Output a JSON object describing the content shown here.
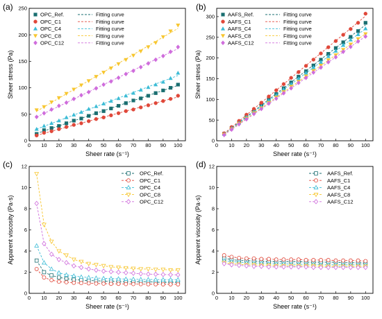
{
  "chart_data": [
    {
      "panel": "(a)",
      "type": "scatter",
      "xlabel": "Sheer rate (s⁻¹)",
      "ylabel": "Sheer stress (Pa)",
      "xlim": [
        0,
        105
      ],
      "ylim": [
        0,
        250
      ],
      "xticks": [
        0,
        10,
        20,
        30,
        40,
        50,
        60,
        70,
        80,
        90,
        100
      ],
      "yticks": [
        0,
        50,
        100,
        150,
        200,
        250
      ],
      "legend_position": "top-left",
      "marker_fill": "filled",
      "fit_label": "Fitting curve",
      "x": [
        5,
        10,
        15,
        20,
        25,
        30,
        35,
        40,
        45,
        50,
        55,
        60,
        65,
        70,
        75,
        80,
        85,
        90,
        95,
        100
      ],
      "series": [
        {
          "name": "OPC_Ref.",
          "color": "#1a6e70",
          "marker": "square",
          "values": [
            13,
            20,
            24,
            28,
            33,
            38,
            42,
            47,
            52,
            56,
            61,
            66,
            71,
            76,
            80,
            85,
            90,
            95,
            100,
            106
          ]
        },
        {
          "name": "OPC_C1",
          "color": "#e0483a",
          "marker": "circle",
          "values": [
            10,
            15,
            18,
            22,
            26,
            30,
            33,
            37,
            41,
            44,
            48,
            52,
            56,
            59,
            63,
            67,
            71,
            75,
            79,
            85
          ]
        },
        {
          "name": "OPC_C4",
          "color": "#3cbcd6",
          "marker": "triangle-up",
          "values": [
            22,
            28,
            33,
            38,
            44,
            49,
            54,
            60,
            65,
            70,
            75,
            80,
            85,
            90,
            96,
            101,
            106,
            111,
            118,
            128
          ]
        },
        {
          "name": "OPC_C8",
          "color": "#f7c62f",
          "marker": "triangle-down",
          "values": [
            58,
            64,
            73,
            81,
            89,
            97,
            105,
            113,
            121,
            129,
            137,
            145,
            153,
            161,
            169,
            177,
            185,
            196,
            207,
            218
          ]
        },
        {
          "name": "OPC_C12",
          "color": "#cf6cdc",
          "marker": "diamond",
          "values": [
            45,
            52,
            59,
            66,
            72,
            79,
            86,
            92,
            99,
            106,
            112,
            119,
            126,
            132,
            139,
            146,
            153,
            160,
            168,
            177
          ]
        }
      ]
    },
    {
      "panel": "(b)",
      "type": "scatter",
      "xlabel": "Sheer rate (s⁻¹)",
      "ylabel": "Sheer stress (Pa)",
      "xlim": [
        0,
        105
      ],
      "ylim": [
        0,
        320
      ],
      "xticks": [
        0,
        10,
        20,
        30,
        40,
        50,
        60,
        70,
        80,
        90,
        100
      ],
      "yticks": [
        0,
        50,
        100,
        150,
        200,
        250,
        300
      ],
      "legend_position": "top-left",
      "marker_fill": "filled",
      "fit_label": "Fitting curve",
      "x": [
        5,
        10,
        15,
        20,
        25,
        30,
        35,
        40,
        45,
        50,
        55,
        60,
        65,
        70,
        75,
        80,
        85,
        90,
        95,
        100
      ],
      "series": [
        {
          "name": "AAFS_Ref.",
          "color": "#1a6e70",
          "marker": "square",
          "values": [
            17,
            31,
            45,
            59,
            72,
            86,
            100,
            113,
            127,
            141,
            155,
            168,
            182,
            196,
            210,
            224,
            238,
            251,
            265,
            285
          ]
        },
        {
          "name": "AAFS_C1",
          "color": "#e0483a",
          "marker": "circle",
          "values": [
            18,
            33,
            48,
            63,
            77,
            92,
            107,
            122,
            137,
            152,
            166,
            181,
            196,
            211,
            226,
            241,
            256,
            270,
            285,
            307
          ]
        },
        {
          "name": "AAFS_C4",
          "color": "#3cbcd6",
          "marker": "triangle-up",
          "values": [
            16,
            30,
            43,
            57,
            70,
            83,
            97,
            110,
            124,
            137,
            150,
            164,
            177,
            190,
            204,
            217,
            231,
            244,
            257,
            271
          ]
        },
        {
          "name": "AAFS_C8",
          "color": "#f7c62f",
          "marker": "triangle-down",
          "values": [
            15,
            28,
            41,
            54,
            67,
            79,
            92,
            105,
            118,
            131,
            143,
            156,
            169,
            182,
            195,
            207,
            220,
            233,
            246,
            258
          ]
        },
        {
          "name": "AAFS_C12",
          "color": "#cf6cdc",
          "marker": "diamond",
          "values": [
            14,
            27,
            40,
            52,
            65,
            77,
            90,
            102,
            115,
            127,
            140,
            152,
            165,
            177,
            190,
            202,
            215,
            227,
            240,
            252
          ]
        }
      ]
    },
    {
      "panel": "(c)",
      "type": "line",
      "xlabel": "Sheer rate (s⁻¹)",
      "ylabel": "Apparent viscosity (Pa·s)",
      "xlim": [
        0,
        105
      ],
      "ylim": [
        0,
        12
      ],
      "xticks": [
        0,
        10,
        20,
        30,
        40,
        50,
        60,
        70,
        80,
        90,
        100
      ],
      "yticks": [
        0,
        2,
        4,
        6,
        8,
        10,
        12
      ],
      "legend_position": "top-right",
      "marker_fill": "hollow",
      "line_style": "dashed",
      "x": [
        5,
        10,
        15,
        20,
        25,
        30,
        35,
        40,
        45,
        50,
        55,
        60,
        65,
        70,
        75,
        80,
        85,
        90,
        95,
        100
      ],
      "series": [
        {
          "name": "OPC_Ref.",
          "color": "#1a6e70",
          "marker": "square",
          "values": [
            3.1,
            2.0,
            1.7,
            1.5,
            1.4,
            1.3,
            1.25,
            1.2,
            1.2,
            1.15,
            1.15,
            1.1,
            1.1,
            1.1,
            1.1,
            1.1,
            1.05,
            1.05,
            1.05,
            1.05
          ]
        },
        {
          "name": "OPC_C1",
          "color": "#e0483a",
          "marker": "circle",
          "values": [
            2.3,
            1.5,
            1.25,
            1.1,
            1.05,
            1.0,
            0.97,
            0.95,
            0.93,
            0.92,
            0.9,
            0.9,
            0.88,
            0.88,
            0.87,
            0.86,
            0.86,
            0.85,
            0.85,
            0.85
          ]
        },
        {
          "name": "OPC_C4",
          "color": "#3cbcd6",
          "marker": "triangle-up",
          "values": [
            4.5,
            2.9,
            2.3,
            1.95,
            1.75,
            1.65,
            1.55,
            1.5,
            1.45,
            1.42,
            1.4,
            1.38,
            1.35,
            1.34,
            1.32,
            1.31,
            1.3,
            1.3,
            1.3,
            1.3
          ]
        },
        {
          "name": "OPC_C8",
          "color": "#f7c62f",
          "marker": "triangle-down",
          "values": [
            11.3,
            6.5,
            4.9,
            4.0,
            3.6,
            3.2,
            3.0,
            2.8,
            2.7,
            2.6,
            2.5,
            2.45,
            2.4,
            2.35,
            2.3,
            2.3,
            2.25,
            2.25,
            2.2,
            2.2
          ]
        },
        {
          "name": "OPC_C12",
          "color": "#cf6cdc",
          "marker": "diamond",
          "values": [
            8.5,
            4.7,
            3.7,
            3.2,
            2.9,
            2.6,
            2.45,
            2.3,
            2.2,
            2.1,
            2.05,
            2.0,
            1.95,
            1.9,
            1.85,
            1.82,
            1.8,
            1.78,
            1.76,
            1.75
          ]
        }
      ]
    },
    {
      "panel": "(d)",
      "type": "line",
      "xlabel": "Sheer rate (s⁻¹)",
      "ylabel": "Apparent viscosity (Pa·s)",
      "xlim": [
        0,
        105
      ],
      "ylim": [
        0,
        12
      ],
      "xticks": [
        0,
        10,
        20,
        30,
        40,
        50,
        60,
        70,
        80,
        90,
        100
      ],
      "yticks": [
        0,
        2,
        4,
        6,
        8,
        10,
        12
      ],
      "legend_position": "top-right",
      "marker_fill": "hollow",
      "line_style": "dashed",
      "x": [
        5,
        10,
        15,
        20,
        25,
        30,
        35,
        40,
        45,
        50,
        55,
        60,
        65,
        70,
        75,
        80,
        85,
        90,
        95,
        100
      ],
      "series": [
        {
          "name": "AAFS_Ref.",
          "color": "#1a6e70",
          "marker": "square",
          "values": [
            3.3,
            3.2,
            3.1,
            3.1,
            3.05,
            3.0,
            3.0,
            3.0,
            3.0,
            3.0,
            3.0,
            2.95,
            2.95,
            2.95,
            2.95,
            2.95,
            2.9,
            2.9,
            2.9,
            2.85
          ]
        },
        {
          "name": "AAFS_C1",
          "color": "#e0483a",
          "marker": "circle",
          "values": [
            3.6,
            3.45,
            3.35,
            3.3,
            3.3,
            3.25,
            3.25,
            3.2,
            3.2,
            3.2,
            3.2,
            3.15,
            3.15,
            3.15,
            3.15,
            3.1,
            3.1,
            3.1,
            3.1,
            3.05
          ]
        },
        {
          "name": "AAFS_C4",
          "color": "#3cbcd6",
          "marker": "triangle-up",
          "values": [
            3.1,
            3.0,
            2.95,
            2.9,
            2.85,
            2.85,
            2.8,
            2.8,
            2.8,
            2.75,
            2.75,
            2.75,
            2.75,
            2.7,
            2.7,
            2.7,
            2.7,
            2.7,
            2.7,
            2.7
          ]
        },
        {
          "name": "AAFS_C8",
          "color": "#f7c62f",
          "marker": "triangle-down",
          "values": [
            2.9,
            2.8,
            2.75,
            2.7,
            2.7,
            2.65,
            2.65,
            2.6,
            2.6,
            2.6,
            2.6,
            2.6,
            2.6,
            2.55,
            2.55,
            2.55,
            2.55,
            2.55,
            2.55,
            2.55
          ]
        },
        {
          "name": "AAFS_C12",
          "color": "#cf6cdc",
          "marker": "diamond",
          "values": [
            2.8,
            2.7,
            2.65,
            2.6,
            2.55,
            2.55,
            2.5,
            2.5,
            2.5,
            2.5,
            2.5,
            2.5,
            2.45,
            2.45,
            2.45,
            2.45,
            2.45,
            2.45,
            2.45,
            2.45
          ]
        }
      ]
    }
  ]
}
